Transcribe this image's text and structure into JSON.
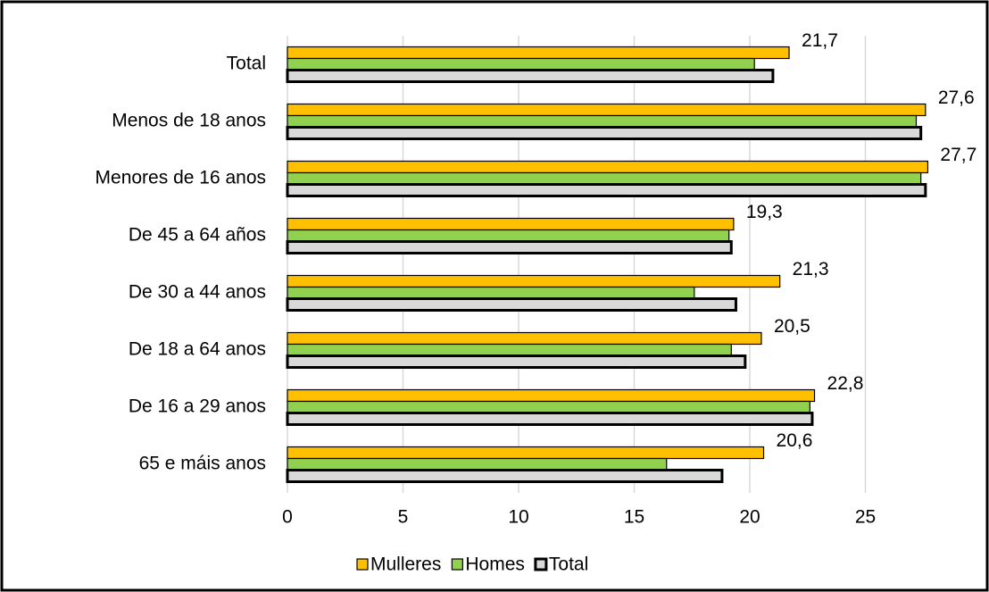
{
  "chart_data": {
    "type": "hbar",
    "categories": [
      "Total",
      "Menos de 18 anos",
      "Menores de 16 anos",
      "De 45 a 64 años",
      "De 30 a 44 anos",
      "De 18 a 64 anos",
      "De 16 a 29 anos",
      "65 e máis anos"
    ],
    "series": [
      {
        "name": "Mulleres",
        "color": "#ffc000",
        "values": [
          21.7,
          27.6,
          27.7,
          19.3,
          21.3,
          20.5,
          22.8,
          20.6
        ],
        "value_labels": [
          "21,7",
          "27,6",
          "27,7",
          "19,3",
          "21,3",
          "20,5",
          "22,8",
          "20,6"
        ]
      },
      {
        "name": "Homes",
        "color": "#92d050",
        "values": [
          20.2,
          27.2,
          27.4,
          19.1,
          17.6,
          19.2,
          22.6,
          16.4
        ]
      },
      {
        "name": "Total",
        "color": "#d9d9d9",
        "values": [
          21.0,
          27.4,
          27.6,
          19.2,
          19.4,
          19.8,
          22.7,
          18.8
        ]
      }
    ],
    "xlim": [
      0,
      30
    ],
    "xticks": [
      0,
      5,
      10,
      15,
      20,
      25
    ],
    "grid": true,
    "legend": "bottom"
  }
}
